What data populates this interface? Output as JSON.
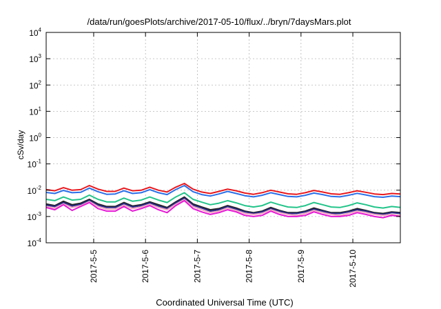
{
  "chart_data": {
    "type": "line",
    "title": "/data/run/goesPlots/archive/2017-05-10/flux/../bryn/7daysMars.plot",
    "xlabel": "Coordinated Universal Time (UTC)",
    "ylabel": "cSv/day",
    "y_scale": "log",
    "ylim": [
      0.0001,
      10000
    ],
    "y_ticks": [
      {
        "value": 0.0001,
        "base": "10",
        "exp": "-4"
      },
      {
        "value": 0.001,
        "base": "10",
        "exp": "-3"
      },
      {
        "value": 0.01,
        "base": "10",
        "exp": "-2"
      },
      {
        "value": 0.1,
        "base": "10",
        "exp": "-1"
      },
      {
        "value": 1,
        "base": "10",
        "exp": "0"
      },
      {
        "value": 10,
        "base": "10",
        "exp": "1"
      },
      {
        "value": 100,
        "base": "10",
        "exp": "2"
      },
      {
        "value": 1000,
        "base": "10",
        "exp": "3"
      },
      {
        "value": 10000,
        "base": "10",
        "exp": "4"
      }
    ],
    "xlim": [
      "2017-05-04 02:00",
      "2017-05-10 22:00"
    ],
    "x_ticks": [
      "2017-5-5",
      "2017-5-6",
      "2017-5-7",
      "2017-5-8",
      "2017-5-9",
      "2017-5-10"
    ],
    "grid": true,
    "x": [
      "2017-05-04 02:00",
      "2017-05-04 06:00",
      "2017-05-04 10:00",
      "2017-05-04 14:00",
      "2017-05-04 18:00",
      "2017-05-04 22:00",
      "2017-05-05 02:00",
      "2017-05-05 06:00",
      "2017-05-05 10:00",
      "2017-05-05 14:00",
      "2017-05-05 18:00",
      "2017-05-05 22:00",
      "2017-05-06 02:00",
      "2017-05-06 06:00",
      "2017-05-06 10:00",
      "2017-05-06 14:00",
      "2017-05-06 18:00",
      "2017-05-06 22:00",
      "2017-05-07 02:00",
      "2017-05-07 06:00",
      "2017-05-07 10:00",
      "2017-05-07 14:00",
      "2017-05-07 18:00",
      "2017-05-07 22:00",
      "2017-05-08 02:00",
      "2017-05-08 06:00",
      "2017-05-08 10:00",
      "2017-05-08 14:00",
      "2017-05-08 18:00",
      "2017-05-08 22:00",
      "2017-05-09 02:00",
      "2017-05-09 06:00",
      "2017-05-09 10:00",
      "2017-05-09 14:00",
      "2017-05-09 18:00",
      "2017-05-09 22:00",
      "2017-05-10 02:00",
      "2017-05-10 06:00",
      "2017-05-10 10:00",
      "2017-05-10 14:00",
      "2017-05-10 18:00",
      "2017-05-10 22:00"
    ],
    "series": [
      {
        "color": "#e8171d",
        "values": [
          0.0105,
          0.0095,
          0.0125,
          0.01,
          0.0105,
          0.015,
          0.011,
          0.009,
          0.009,
          0.012,
          0.0095,
          0.01,
          0.013,
          0.01,
          0.0085,
          0.013,
          0.018,
          0.011,
          0.0085,
          0.0075,
          0.009,
          0.011,
          0.0095,
          0.0078,
          0.007,
          0.008,
          0.01,
          0.0085,
          0.0073,
          0.007,
          0.008,
          0.0098,
          0.0085,
          0.0073,
          0.007,
          0.008,
          0.0095,
          0.0083,
          0.0072,
          0.0068,
          0.0075,
          0.0072
        ]
      },
      {
        "color": "#2a6fe8",
        "values": [
          0.0082,
          0.0075,
          0.0098,
          0.008,
          0.0083,
          0.012,
          0.0088,
          0.007,
          0.0072,
          0.0095,
          0.0075,
          0.008,
          0.0105,
          0.008,
          0.0068,
          0.0105,
          0.015,
          0.0088,
          0.0068,
          0.006,
          0.0072,
          0.009,
          0.0075,
          0.0062,
          0.0056,
          0.0064,
          0.008,
          0.0068,
          0.0058,
          0.0056,
          0.0064,
          0.0078,
          0.0068,
          0.0058,
          0.0056,
          0.0064,
          0.0076,
          0.0066,
          0.0057,
          0.0054,
          0.006,
          0.0057
        ]
      },
      {
        "color": "#22c48a",
        "values": [
          0.0045,
          0.004,
          0.0055,
          0.0042,
          0.0045,
          0.0065,
          0.0045,
          0.0036,
          0.0036,
          0.005,
          0.0038,
          0.0042,
          0.0055,
          0.0042,
          0.0034,
          0.0055,
          0.008,
          0.0045,
          0.0035,
          0.0028,
          0.0032,
          0.004,
          0.0033,
          0.0026,
          0.0023,
          0.0026,
          0.0035,
          0.0028,
          0.0023,
          0.0022,
          0.0026,
          0.0034,
          0.0028,
          0.0023,
          0.0022,
          0.0026,
          0.0033,
          0.0028,
          0.0023,
          0.0021,
          0.0024,
          0.0022
        ]
      },
      {
        "color": "#222222",
        "values": [
          0.003,
          0.0026,
          0.0038,
          0.0028,
          0.0032,
          0.0045,
          0.003,
          0.0024,
          0.0024,
          0.0034,
          0.0025,
          0.0028,
          0.0036,
          0.0028,
          0.0022,
          0.0036,
          0.0055,
          0.003,
          0.0023,
          0.0018,
          0.002,
          0.0026,
          0.0021,
          0.0016,
          0.0014,
          0.0016,
          0.0022,
          0.0017,
          0.0014,
          0.0014,
          0.0016,
          0.0021,
          0.0017,
          0.0014,
          0.0014,
          0.0016,
          0.002,
          0.0017,
          0.0014,
          0.0013,
          0.0015,
          0.0014
        ]
      },
      {
        "color": "#2b2c8a",
        "values": [
          0.0027,
          0.0024,
          0.0034,
          0.0025,
          0.0029,
          0.0041,
          0.0027,
          0.0022,
          0.0022,
          0.0031,
          0.0023,
          0.0026,
          0.0033,
          0.0025,
          0.002,
          0.0033,
          0.005,
          0.0027,
          0.0021,
          0.0016,
          0.0018,
          0.0024,
          0.0019,
          0.0015,
          0.0013,
          0.0015,
          0.002,
          0.0016,
          0.0013,
          0.0013,
          0.0015,
          0.0019,
          0.0016,
          0.0013,
          0.0013,
          0.0015,
          0.0018,
          0.0016,
          0.0013,
          0.0012,
          0.0014,
          0.0013
        ]
      },
      {
        "color": "#f2a7c0",
        "values": [
          0.0024,
          0.0021,
          0.003,
          0.0022,
          0.0026,
          0.0037,
          0.0024,
          0.0019,
          0.0019,
          0.0027,
          0.002,
          0.0023,
          0.0029,
          0.0022,
          0.0018,
          0.0029,
          0.0044,
          0.0024,
          0.0018,
          0.0014,
          0.0016,
          0.0021,
          0.0017,
          0.0013,
          0.0012,
          0.0013,
          0.0018,
          0.0014,
          0.0012,
          0.0011,
          0.0013,
          0.0017,
          0.0014,
          0.0012,
          0.0011,
          0.0013,
          0.0016,
          0.0014,
          0.0012,
          0.0011,
          0.0012,
          0.0011
        ]
      },
      {
        "color": "#e619d6",
        "values": [
          0.0022,
          0.0018,
          0.0028,
          0.0017,
          0.0024,
          0.0034,
          0.002,
          0.0016,
          0.0016,
          0.0024,
          0.0016,
          0.002,
          0.0026,
          0.0018,
          0.0014,
          0.0026,
          0.004,
          0.002,
          0.0015,
          0.0012,
          0.0014,
          0.0018,
          0.0015,
          0.0011,
          0.001,
          0.0011,
          0.0016,
          0.0012,
          0.001,
          0.001,
          0.0011,
          0.0015,
          0.0012,
          0.001,
          0.001,
          0.0011,
          0.0014,
          0.0012,
          0.001,
          0.0009,
          0.0011,
          0.001
        ]
      }
    ]
  }
}
